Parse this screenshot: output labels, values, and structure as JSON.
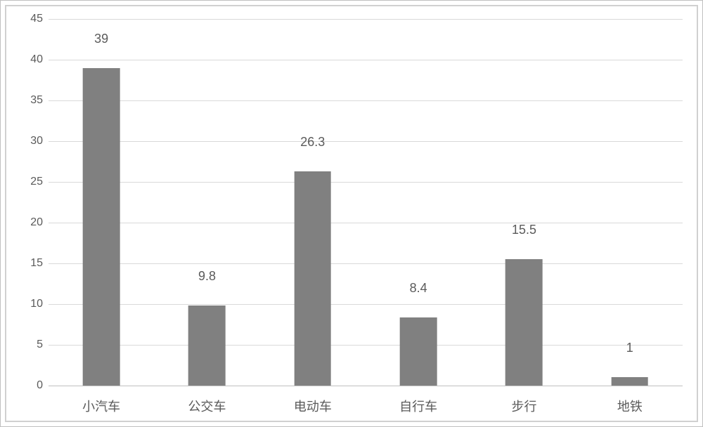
{
  "chart": {
    "type": "bar",
    "categories": [
      "小汽车",
      "公交车",
      "电动车",
      "自行车",
      "步行",
      "地铁"
    ],
    "values": [
      39,
      9.8,
      26.3,
      8.4,
      15.5,
      1
    ],
    "value_labels": [
      "39",
      "9.8",
      "26.3",
      "8.4",
      "15.5",
      "1"
    ],
    "bar_color": "#808080",
    "ylim": [
      0,
      45
    ],
    "yticks": [
      0,
      5,
      10,
      15,
      20,
      25,
      30,
      35,
      40,
      45
    ],
    "ytick_labels": [
      "0",
      "5",
      "10",
      "15",
      "20",
      "25",
      "30",
      "35",
      "40",
      "45"
    ],
    "grid_color": "#d9d9d9",
    "axis_color": "#c0c0c0",
    "background_color": "#ffffff",
    "text_color": "#5a5a5a",
    "label_fontsize": 18,
    "tick_fontsize": 16,
    "bar_width_ratio": 0.35,
    "frame_border_color": "#d0d0d0",
    "outer_border_color": "#c0c0c0"
  }
}
